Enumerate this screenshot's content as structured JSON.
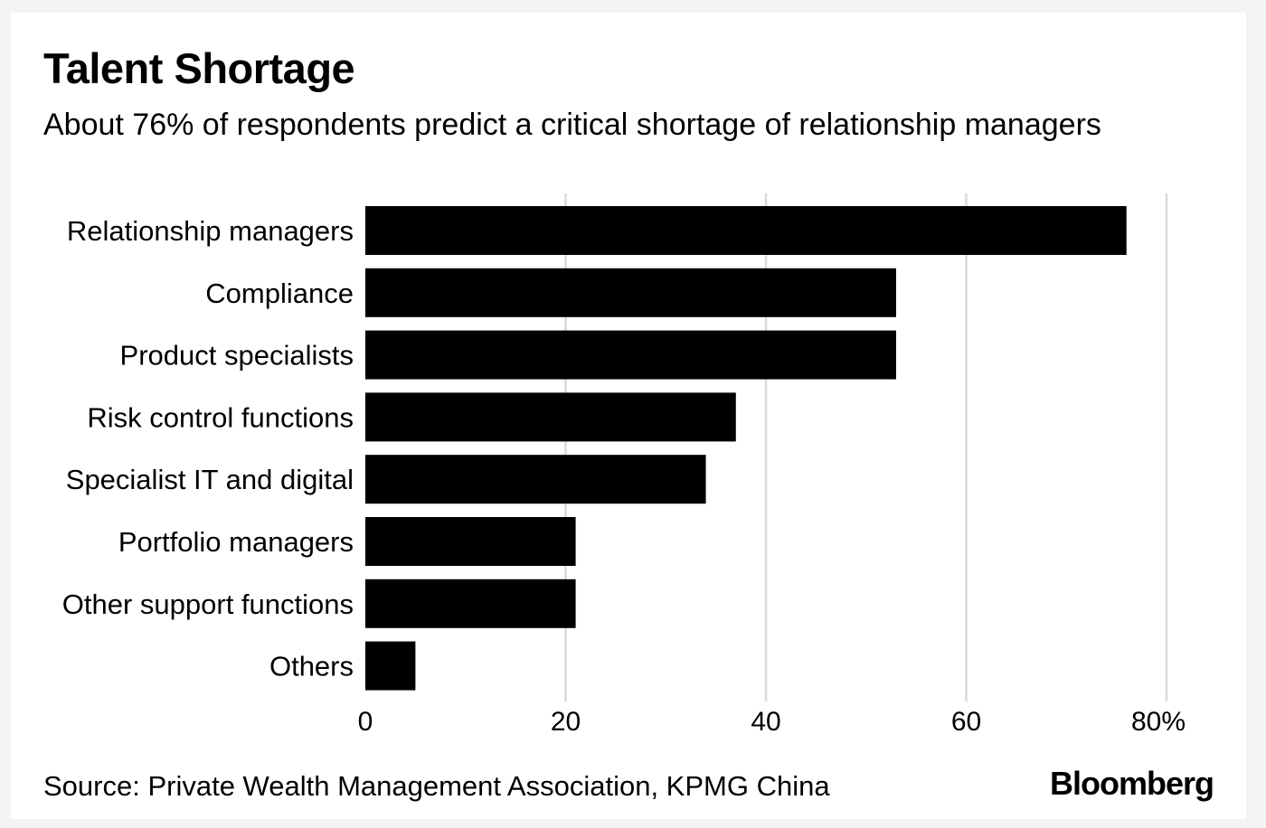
{
  "header": {
    "title": "Talent Shortage",
    "subtitle": "About 76% of respondents predict a critical shortage of relationship managers"
  },
  "footer": {
    "source": "Source: Private Wealth Management Association, KPMG China",
    "brand": "Bloomberg"
  },
  "colors": {
    "bar": "#000000",
    "grid": "#d9d9d9",
    "background": "#ffffff"
  },
  "chart_data": {
    "type": "bar",
    "orientation": "horizontal",
    "title": "Talent Shortage",
    "subtitle": "About 76% of respondents predict a critical shortage of relationship managers",
    "categories": [
      "Relationship managers",
      "Compliance",
      "Product specialists",
      "Risk control functions",
      "Specialist IT and digital",
      "Portfolio managers",
      "Other support functions",
      "Others"
    ],
    "values": [
      76,
      53,
      53,
      37,
      34,
      21,
      21,
      5
    ],
    "xlim": [
      0,
      80
    ],
    "xticks": [
      0,
      20,
      40,
      60,
      80
    ],
    "xtick_labels": [
      "0",
      "20",
      "40",
      "60",
      "80%"
    ],
    "grid": true,
    "legend": "none"
  }
}
